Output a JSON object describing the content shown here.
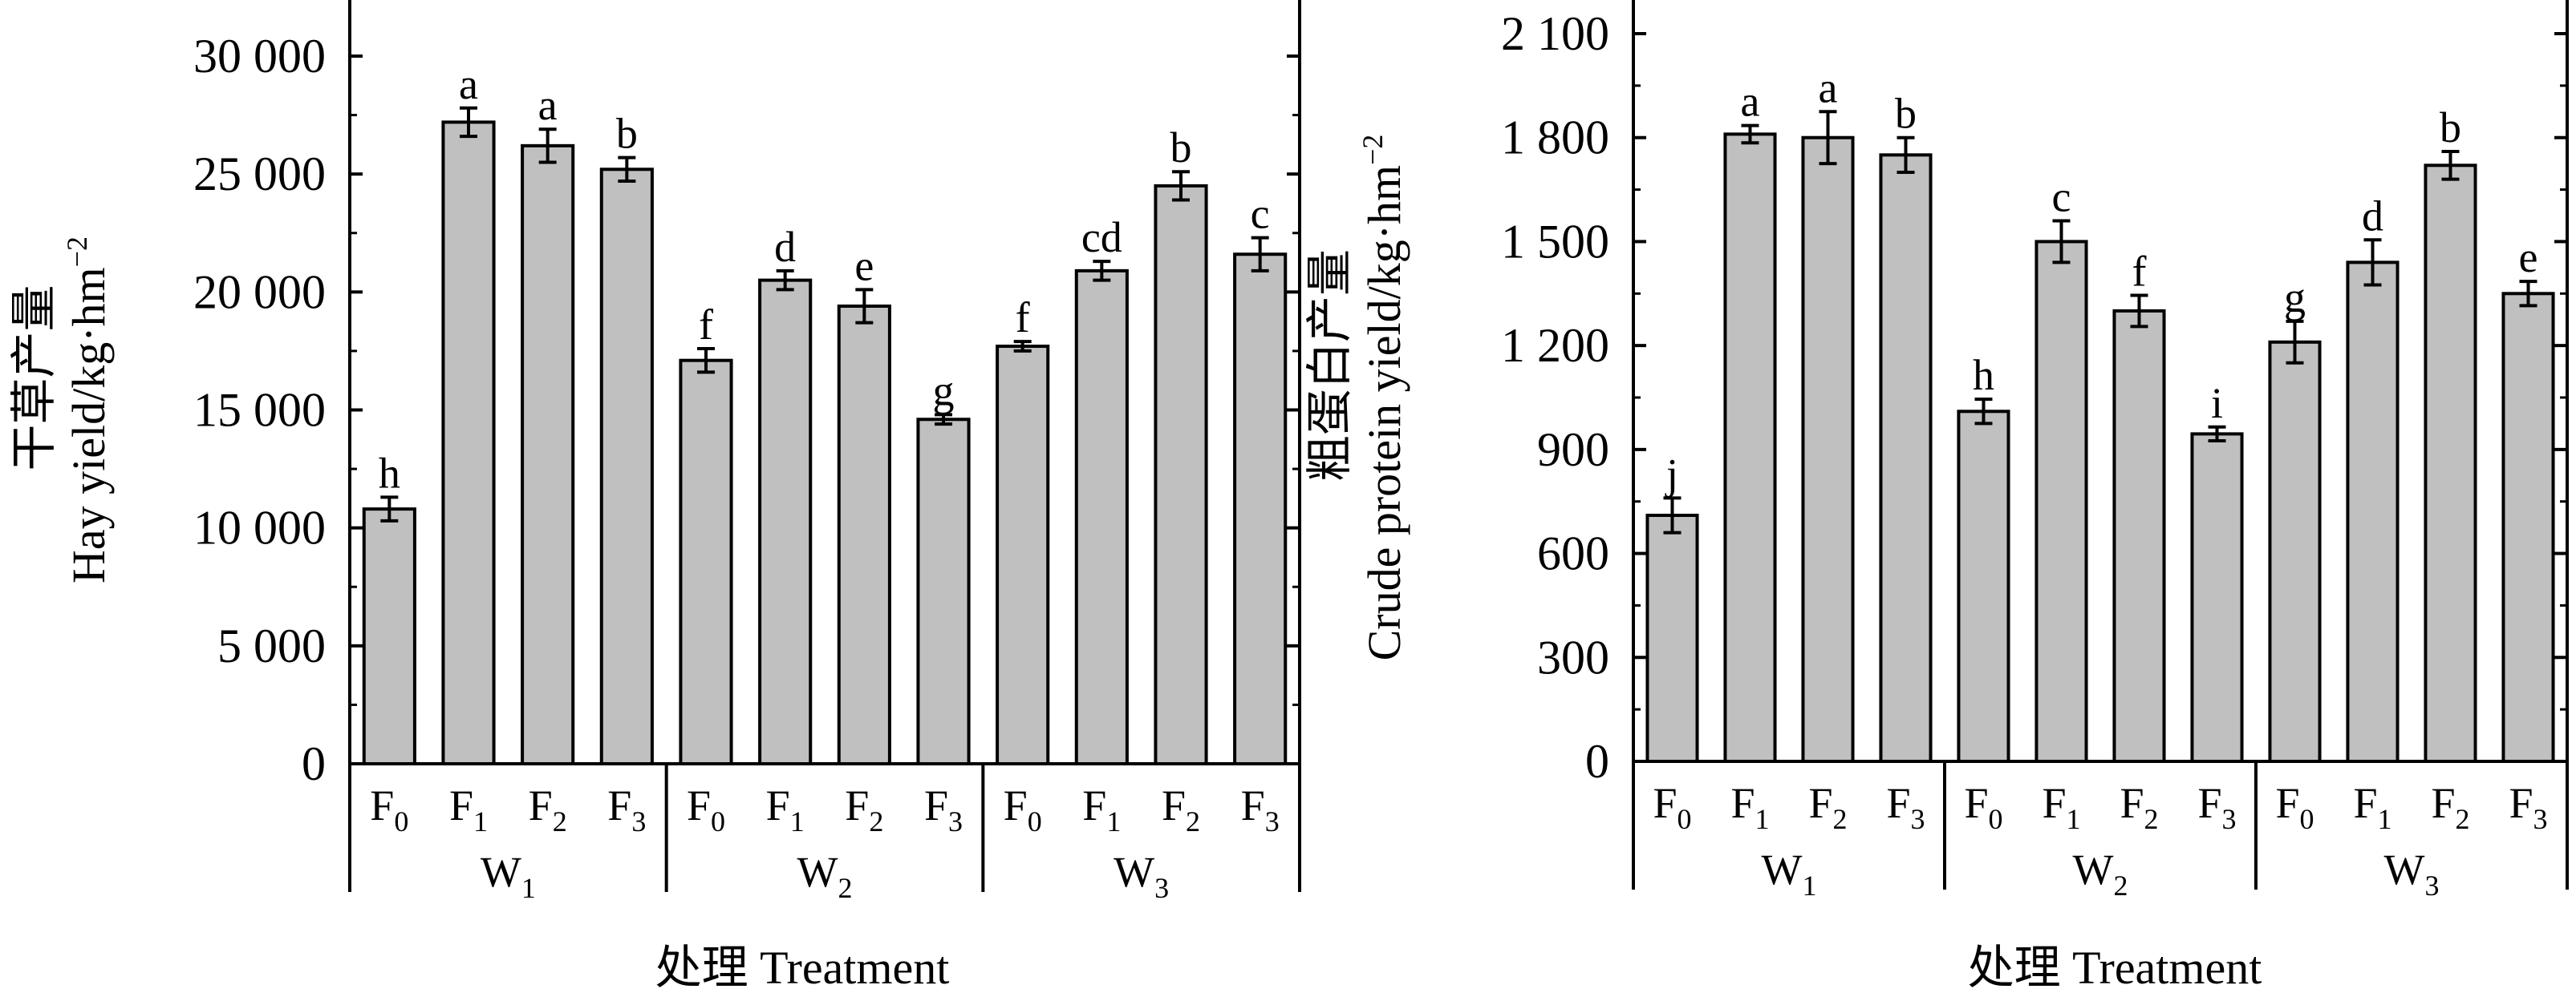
{
  "colors": {
    "bar": "#c0c0c0",
    "stroke": "#000000",
    "background": "#ffffff"
  },
  "chart_data": [
    {
      "type": "bar",
      "ylabel_cn": "干草产量",
      "ylabel_en": "Hay yield/kg·hm",
      "ylabel_sup": "−2",
      "xlabel": "处理 Treatment",
      "ylim": [
        0,
        30000
      ],
      "yticks": [
        "0",
        "5 000",
        "10 000",
        "15 000",
        "20 000",
        "25 000",
        "30 000"
      ],
      "groups": [
        "W1",
        "W2",
        "W3"
      ],
      "categories": [
        "F0",
        "F1",
        "F2",
        "F3"
      ],
      "bars": [
        {
          "group": "W1",
          "cat": "F0",
          "value": 10800,
          "err": 500,
          "sig": "h"
        },
        {
          "group": "W1",
          "cat": "F1",
          "value": 27200,
          "err": 600,
          "sig": "a"
        },
        {
          "group": "W1",
          "cat": "F2",
          "value": 26200,
          "err": 700,
          "sig": "a"
        },
        {
          "group": "W1",
          "cat": "F3",
          "value": 25200,
          "err": 500,
          "sig": "b"
        },
        {
          "group": "W2",
          "cat": "F0",
          "value": 17100,
          "err": 500,
          "sig": "f"
        },
        {
          "group": "W2",
          "cat": "F1",
          "value": 20500,
          "err": 400,
          "sig": "d"
        },
        {
          "group": "W2",
          "cat": "F2",
          "value": 19400,
          "err": 700,
          "sig": "e"
        },
        {
          "group": "W2",
          "cat": "F3",
          "value": 14600,
          "err": 200,
          "sig": "g"
        },
        {
          "group": "W3",
          "cat": "F0",
          "value": 17700,
          "err": 200,
          "sig": "f"
        },
        {
          "group": "W3",
          "cat": "F1",
          "value": 20900,
          "err": 400,
          "sig": "cd"
        },
        {
          "group": "W3",
          "cat": "F2",
          "value": 24500,
          "err": 600,
          "sig": "b"
        },
        {
          "group": "W3",
          "cat": "F3",
          "value": 21600,
          "err": 700,
          "sig": "c"
        }
      ]
    },
    {
      "type": "bar",
      "ylabel_cn": "粗蛋白产量",
      "ylabel_en": "Crude protein yield/kg·hm",
      "ylabel_sup": "−2",
      "xlabel": "处理 Treatment",
      "ylim": [
        0,
        2100
      ],
      "yticks": [
        "0",
        "300",
        "600",
        "900",
        "1 200",
        "1 500",
        "1 800",
        "2 100"
      ],
      "groups": [
        "W1",
        "W2",
        "W3"
      ],
      "categories": [
        "F0",
        "F1",
        "F2",
        "F3"
      ],
      "bars": [
        {
          "group": "W1",
          "cat": "F0",
          "value": 710,
          "err": 50,
          "sig": "j"
        },
        {
          "group": "W1",
          "cat": "F1",
          "value": 1810,
          "err": 25,
          "sig": "a"
        },
        {
          "group": "W1",
          "cat": "F2",
          "value": 1800,
          "err": 75,
          "sig": "a"
        },
        {
          "group": "W1",
          "cat": "F3",
          "value": 1750,
          "err": 50,
          "sig": "b"
        },
        {
          "group": "W2",
          "cat": "F0",
          "value": 1010,
          "err": 35,
          "sig": "h"
        },
        {
          "group": "W2",
          "cat": "F1",
          "value": 1500,
          "err": 60,
          "sig": "c"
        },
        {
          "group": "W2",
          "cat": "F2",
          "value": 1300,
          "err": 45,
          "sig": "f"
        },
        {
          "group": "W2",
          "cat": "F3",
          "value": 945,
          "err": 20,
          "sig": "i"
        },
        {
          "group": "W3",
          "cat": "F0",
          "value": 1210,
          "err": 60,
          "sig": "g"
        },
        {
          "group": "W3",
          "cat": "F1",
          "value": 1440,
          "err": 65,
          "sig": "d"
        },
        {
          "group": "W3",
          "cat": "F2",
          "value": 1720,
          "err": 40,
          "sig": "b"
        },
        {
          "group": "W3",
          "cat": "F3",
          "value": 1350,
          "err": 35,
          "sig": "e"
        }
      ]
    }
  ]
}
